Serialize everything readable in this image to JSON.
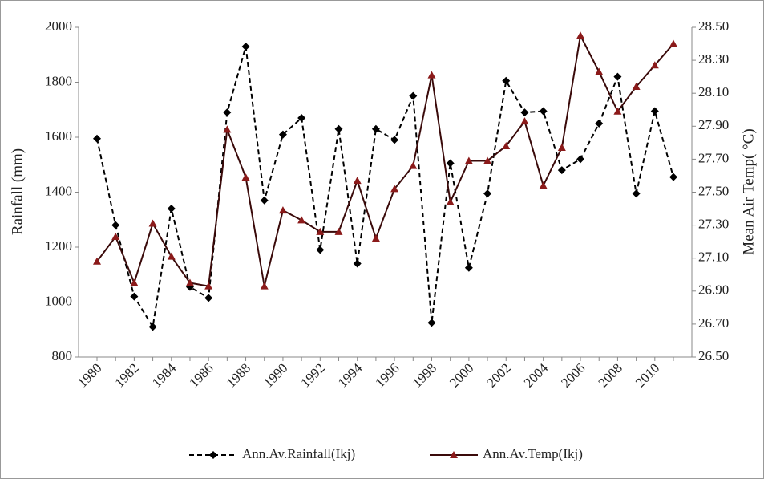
{
  "chart_data": {
    "type": "line",
    "y_label": "Rainfall (mm)",
    "y2_label": "Mean Air Temp( °C)",
    "categories": [
      "1980",
      null,
      "1982",
      null,
      "1984",
      null,
      "1986",
      null,
      "1988",
      null,
      "1990",
      null,
      "1992",
      null,
      "1994",
      null,
      "1996",
      null,
      "1998",
      null,
      "2000",
      null,
      "2002",
      null,
      "2004",
      null,
      "2006",
      null,
      "2008",
      null,
      "2010",
      null
    ],
    "series": [
      {
        "name": "Ann.Av.Rainfall(Ikj)",
        "color": "#000000",
        "dash": true,
        "marker": "diamond",
        "values": [
          1595,
          1280,
          1020,
          910,
          1340,
          1055,
          1015,
          1690,
          1930,
          1370,
          1610,
          1670,
          1190,
          1630,
          1140,
          1630,
          1590,
          1750,
          925,
          1505,
          1125,
          1395,
          1805,
          1690,
          1695,
          1480,
          1520,
          1650,
          1820,
          1395,
          1695,
          1455
        ]
      },
      {
        "name": "Ann.Av.Temp(Ikj)",
        "color": "#3a0a0a",
        "marker_color": "#8b1a1a",
        "dash": false,
        "marker": "triangle",
        "axis": "y2",
        "values": [
          27.08,
          27.23,
          26.95,
          27.31,
          27.11,
          26.95,
          26.93,
          27.88,
          27.59,
          26.93,
          27.39,
          27.33,
          27.26,
          27.26,
          27.57,
          27.22,
          27.52,
          27.66,
          28.21,
          27.44,
          27.69,
          27.69,
          27.78,
          27.93,
          27.54,
          27.77,
          28.45,
          28.23,
          27.99,
          28.14,
          28.27,
          28.4
        ]
      }
    ],
    "ylim": [
      800,
      2000
    ],
    "yticks": [
      800,
      1000,
      1200,
      1400,
      1600,
      1800,
      2000
    ],
    "y2lim": [
      26.5,
      28.5
    ],
    "y2ticks": [
      {
        "value": 26.5,
        "label": "26.50"
      },
      {
        "value": 26.7,
        "label": "26.70"
      },
      {
        "value": 26.9,
        "label": "26.90"
      },
      {
        "value": 27.1,
        "label": "27.10"
      },
      {
        "value": 27.3,
        "label": "27.30"
      },
      {
        "value": 27.5,
        "label": "27.50"
      },
      {
        "value": 27.7,
        "label": "27.70"
      },
      {
        "value": 27.9,
        "label": "27.90"
      },
      {
        "value": 28.1,
        "label": "28.10"
      },
      {
        "value": 28.3,
        "label": "28.30"
      },
      {
        "value": 28.5,
        "label": "28.50"
      }
    ],
    "legend": "bottom"
  }
}
